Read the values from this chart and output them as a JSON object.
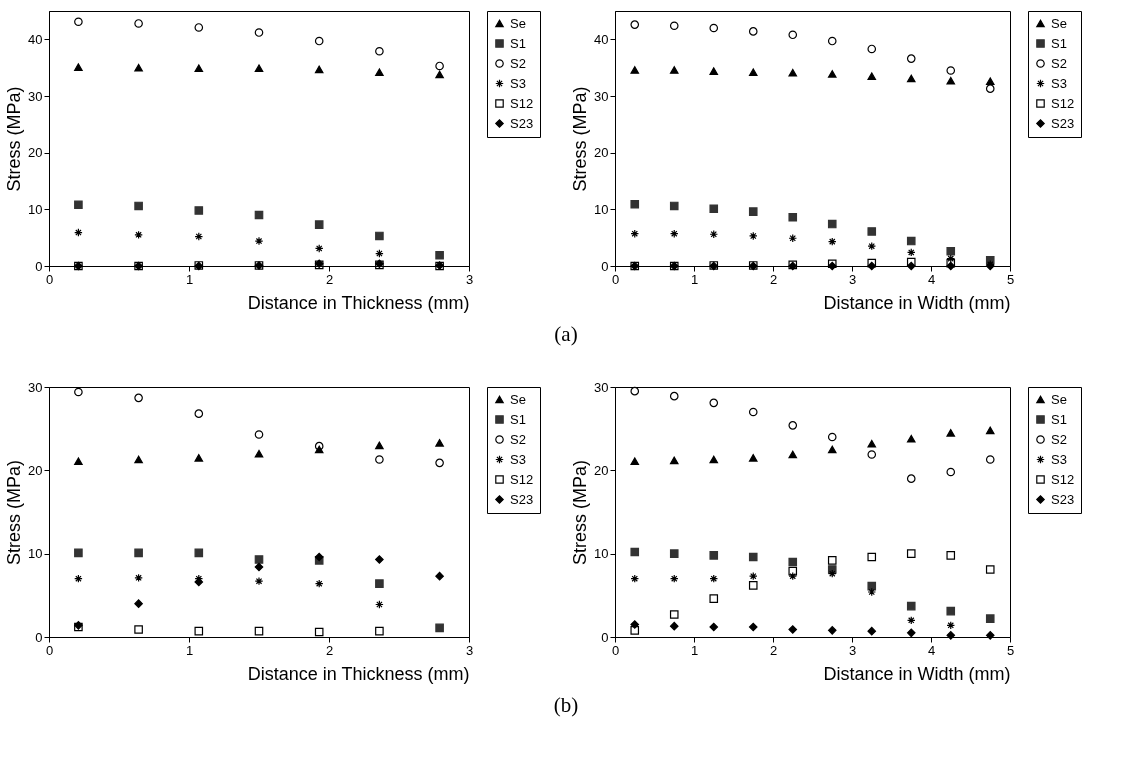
{
  "chart_data": [
    {
      "type": "scatter",
      "xlabel": "Distance in Thickness (mm)",
      "ylabel": "Stress (MPa)",
      "x": [
        0.21,
        0.64,
        1.07,
        1.5,
        1.93,
        2.36,
        2.79
      ],
      "xlim": [
        0,
        3
      ],
      "xticks": [
        0,
        1,
        2,
        3
      ],
      "ylim": [
        0,
        45
      ],
      "yticks": [
        0,
        10,
        20,
        30,
        40
      ],
      "grid": false,
      "legend": "right",
      "annotations": [
        "(a)"
      ],
      "series": [
        {
          "name": "Se",
          "color": "#000000",
          "marker": "triangle",
          "values": [
            35.1,
            35.0,
            34.9,
            34.9,
            34.7,
            34.2,
            33.8
          ]
        },
        {
          "name": "S1",
          "color": "#333333",
          "marker": "square",
          "values": [
            10.8,
            10.6,
            9.8,
            9.0,
            7.3,
            5.3,
            1.9
          ]
        },
        {
          "name": "S2",
          "color": "#000000",
          "marker": "circle",
          "values": [
            43.1,
            42.8,
            42.1,
            41.2,
            39.7,
            37.9,
            35.3
          ]
        },
        {
          "name": "S3",
          "color": "#000000",
          "marker": "cross",
          "values": [
            5.9,
            5.5,
            5.2,
            4.4,
            3.1,
            2.2,
            null
          ]
        },
        {
          "name": "S12",
          "color": "#000000",
          "marker": "square",
          "values": [
            0,
            0,
            0.1,
            0.1,
            0.2,
            0.2,
            0
          ]
        },
        {
          "name": "S23",
          "color": "#000000",
          "marker": "diamond",
          "values": [
            0,
            0,
            0,
            0.1,
            0.4,
            0.4,
            0.1
          ]
        }
      ]
    },
    {
      "type": "scatter",
      "xlabel": "Distance in Width (mm)",
      "ylabel": "Stress (MPa)",
      "x": [
        0.25,
        0.75,
        1.25,
        1.75,
        2.25,
        2.75,
        3.25,
        3.75,
        4.25,
        4.75
      ],
      "xlim": [
        0,
        5
      ],
      "xticks": [
        0,
        1,
        2,
        3,
        4,
        5
      ],
      "ylim": [
        0,
        45
      ],
      "yticks": [
        0,
        10,
        20,
        30,
        40
      ],
      "grid": false,
      "legend": "right",
      "series": [
        {
          "name": "Se",
          "color": "#000000",
          "marker": "triangle",
          "values": [
            34.6,
            34.6,
            34.4,
            34.2,
            34.1,
            33.9,
            33.5,
            33.1,
            32.7,
            32.6
          ]
        },
        {
          "name": "S1",
          "color": "#333333",
          "marker": "square",
          "values": [
            10.9,
            10.6,
            10.1,
            9.6,
            8.6,
            7.4,
            6.1,
            4.4,
            2.6,
            1.0
          ]
        },
        {
          "name": "S2",
          "color": "#000000",
          "marker": "circle",
          "values": [
            42.6,
            42.4,
            42.0,
            41.4,
            40.8,
            39.7,
            38.3,
            36.6,
            34.5,
            31.3
          ]
        },
        {
          "name": "S3",
          "color": "#000000",
          "marker": "cross",
          "values": [
            5.7,
            5.7,
            5.6,
            5.3,
            4.9,
            4.3,
            3.5,
            2.4,
            1.3,
            0.3
          ]
        },
        {
          "name": "S12",
          "color": "#000000",
          "marker": "square",
          "values": [
            0,
            0,
            0.1,
            0.1,
            0.2,
            0.4,
            0.5,
            0.7,
            0.5,
            null
          ]
        },
        {
          "name": "S23",
          "color": "#000000",
          "marker": "diamond",
          "values": [
            0,
            0,
            0,
            0,
            0,
            0,
            0,
            0,
            0,
            0
          ]
        }
      ]
    },
    {
      "type": "scatter",
      "xlabel": "Distance in Thickness (mm)",
      "ylabel": "Stress (MPa)",
      "x": [
        0.21,
        0.64,
        1.07,
        1.5,
        1.93,
        2.36,
        2.79
      ],
      "xlim": [
        0,
        3
      ],
      "xticks": [
        0,
        1,
        2,
        3
      ],
      "ylim": [
        0,
        30
      ],
      "yticks": [
        0,
        10,
        20,
        30
      ],
      "grid": false,
      "legend": "right",
      "annotations": [
        "(b)"
      ],
      "series": [
        {
          "name": "Se",
          "color": "#000000",
          "marker": "triangle",
          "values": [
            21.1,
            21.3,
            21.5,
            22.0,
            22.5,
            23.0,
            23.3
          ]
        },
        {
          "name": "S1",
          "color": "#333333",
          "marker": "square",
          "values": [
            10.1,
            10.1,
            10.1,
            9.3,
            9.2,
            6.4,
            1.1
          ]
        },
        {
          "name": "S2",
          "color": "#000000",
          "marker": "circle",
          "values": [
            29.4,
            28.7,
            26.8,
            24.3,
            22.9,
            21.3,
            20.9
          ]
        },
        {
          "name": "S3",
          "color": "#000000",
          "marker": "cross",
          "values": [
            7.0,
            7.1,
            7.0,
            6.7,
            6.4,
            3.9,
            null
          ]
        },
        {
          "name": "S12",
          "color": "#000000",
          "marker": "square",
          "values": [
            1.2,
            0.9,
            0.7,
            0.7,
            0.6,
            0.7,
            null
          ]
        },
        {
          "name": "S23",
          "color": "#000000",
          "marker": "diamond",
          "values": [
            1.4,
            4.0,
            6.6,
            8.4,
            9.6,
            9.3,
            7.3
          ]
        }
      ]
    },
    {
      "type": "scatter",
      "xlabel": "Distance in Width (mm)",
      "ylabel": "Stress (MPa)",
      "x": [
        0.25,
        0.75,
        1.25,
        1.75,
        2.25,
        2.75,
        3.25,
        3.75,
        4.25,
        4.75
      ],
      "xlim": [
        0,
        5
      ],
      "xticks": [
        0,
        1,
        2,
        3,
        4,
        5
      ],
      "ylim": [
        0,
        30
      ],
      "yticks": [
        0,
        10,
        20,
        30
      ],
      "grid": false,
      "legend": "right",
      "series": [
        {
          "name": "Se",
          "color": "#000000",
          "marker": "triangle",
          "values": [
            21.1,
            21.2,
            21.3,
            21.5,
            21.9,
            22.5,
            23.2,
            23.8,
            24.5,
            24.8
          ]
        },
        {
          "name": "S1",
          "color": "#333333",
          "marker": "square",
          "values": [
            10.2,
            10.0,
            9.8,
            9.6,
            9.0,
            8.1,
            6.1,
            3.7,
            3.1,
            2.2
          ]
        },
        {
          "name": "S2",
          "color": "#000000",
          "marker": "circle",
          "values": [
            29.5,
            28.9,
            28.1,
            27.0,
            25.4,
            24.0,
            21.9,
            19.0,
            19.8,
            21.3
          ]
        },
        {
          "name": "S3",
          "color": "#000000",
          "marker": "cross",
          "values": [
            7.0,
            7.0,
            7.0,
            7.3,
            7.3,
            7.6,
            5.4,
            2.0,
            1.4,
            null
          ]
        },
        {
          "name": "S12",
          "color": "#000000",
          "marker": "square",
          "values": [
            0.8,
            2.7,
            4.6,
            6.2,
            7.9,
            9.2,
            9.6,
            10.0,
            9.8,
            8.1
          ]
        },
        {
          "name": "S23",
          "color": "#000000",
          "marker": "diamond",
          "values": [
            1.5,
            1.3,
            1.2,
            1.2,
            0.9,
            0.8,
            0.7,
            0.5,
            0.2,
            0.2
          ]
        }
      ]
    }
  ]
}
